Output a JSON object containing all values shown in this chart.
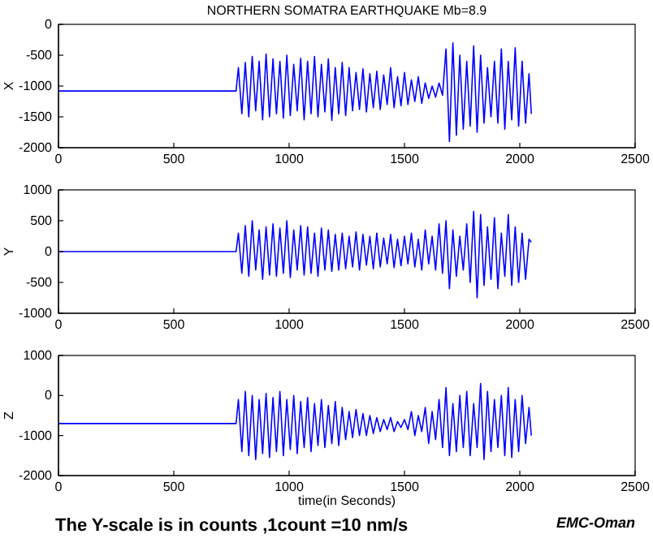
{
  "chart_data": [
    {
      "type": "line",
      "title": "NORTHERN SOMATRA EARTHQUAKE Mb=8.9",
      "ylabel": "X",
      "xlim": [
        0,
        2500
      ],
      "xticks": [
        0,
        500,
        1000,
        1500,
        2000,
        2500
      ],
      "ylim": [
        -2000,
        0
      ],
      "yticks": [
        -2000,
        -1500,
        -1000,
        -500,
        0
      ],
      "x": [
        0,
        770,
        780,
        795,
        810,
        825,
        840,
        855,
        870,
        885,
        900,
        915,
        930,
        945,
        960,
        975,
        990,
        1005,
        1020,
        1035,
        1050,
        1065,
        1080,
        1095,
        1110,
        1125,
        1140,
        1155,
        1170,
        1185,
        1200,
        1215,
        1230,
        1245,
        1260,
        1275,
        1290,
        1305,
        1320,
        1335,
        1350,
        1365,
        1380,
        1395,
        1410,
        1425,
        1440,
        1455,
        1470,
        1485,
        1500,
        1515,
        1530,
        1545,
        1560,
        1575,
        1590,
        1605,
        1620,
        1635,
        1650,
        1665,
        1680,
        1695,
        1710,
        1725,
        1740,
        1755,
        1770,
        1785,
        1800,
        1815,
        1830,
        1845,
        1860,
        1875,
        1890,
        1905,
        1920,
        1935,
        1950,
        1965,
        1980,
        1995,
        2010,
        2025,
        2040,
        2050
      ],
      "series": [
        {
          "color": "#0000ff",
          "values": [
            -1080,
            -1080,
            -700,
            -1450,
            -620,
            -1500,
            -520,
            -1400,
            -600,
            -1550,
            -480,
            -1500,
            -560,
            -1450,
            -600,
            -1520,
            -500,
            -1480,
            -650,
            -1400,
            -550,
            -1550,
            -600,
            -1450,
            -520,
            -1500,
            -650,
            -1420,
            -560,
            -1560,
            -700,
            -1450,
            -620,
            -1480,
            -700,
            -1400,
            -780,
            -1380,
            -720,
            -1420,
            -800,
            -1350,
            -760,
            -1380,
            -820,
            -1300,
            -700,
            -1350,
            -850,
            -1320,
            -780,
            -1300,
            -900,
            -1250,
            -850,
            -1280,
            -950,
            -1200,
            -1000,
            -1180,
            -950,
            -1150,
            -400,
            -1900,
            -300,
            -1800,
            -500,
            -1700,
            -600,
            -1650,
            -350,
            -1750,
            -500,
            -1600,
            -700,
            -1500,
            -600,
            -1600,
            -400,
            -1700,
            -600,
            -1550,
            -380,
            -1650,
            -600,
            -1600,
            -800,
            -1450
          ]
        }
      ]
    },
    {
      "type": "line",
      "ylabel": "Y",
      "xlim": [
        0,
        2500
      ],
      "xticks": [
        0,
        500,
        1000,
        1500,
        2000,
        2500
      ],
      "ylim": [
        -1000,
        1000
      ],
      "yticks": [
        -1000,
        -500,
        0,
        500,
        1000
      ],
      "x": [
        0,
        770,
        780,
        795,
        810,
        825,
        840,
        855,
        870,
        885,
        900,
        915,
        930,
        945,
        960,
        975,
        990,
        1005,
        1020,
        1035,
        1050,
        1065,
        1080,
        1095,
        1110,
        1125,
        1140,
        1155,
        1170,
        1185,
        1200,
        1215,
        1230,
        1245,
        1260,
        1275,
        1290,
        1305,
        1320,
        1335,
        1350,
        1365,
        1380,
        1395,
        1410,
        1425,
        1440,
        1455,
        1470,
        1485,
        1500,
        1515,
        1530,
        1545,
        1560,
        1575,
        1590,
        1605,
        1620,
        1635,
        1650,
        1665,
        1680,
        1695,
        1710,
        1725,
        1740,
        1755,
        1770,
        1785,
        1800,
        1815,
        1830,
        1845,
        1860,
        1875,
        1890,
        1905,
        1920,
        1935,
        1950,
        1965,
        1980,
        1995,
        2010,
        2025,
        2040,
        2050
      ],
      "series": [
        {
          "color": "#0000ff",
          "values": [
            0,
            0,
            300,
            -350,
            420,
            -400,
            500,
            -300,
            350,
            -450,
            400,
            -380,
            450,
            -400,
            380,
            -350,
            500,
            -420,
            350,
            -300,
            420,
            -380,
            400,
            -350,
            300,
            -400,
            380,
            -300,
            350,
            -320,
            280,
            -300,
            300,
            -280,
            250,
            -250,
            320,
            -300,
            280,
            -220,
            250,
            -280,
            300,
            -250,
            220,
            -200,
            280,
            -260,
            200,
            -230,
            250,
            -200,
            300,
            -250,
            200,
            -300,
            350,
            -200,
            250,
            -300,
            450,
            -350,
            500,
            -600,
            350,
            -400,
            250,
            -300,
            450,
            -500,
            650,
            -750,
            600,
            -550,
            400,
            -450,
            550,
            -600,
            300,
            -400,
            600,
            -550,
            400,
            -500,
            300,
            -450,
            200,
            150
          ]
        }
      ]
    },
    {
      "type": "line",
      "ylabel": "Z",
      "xlabel": "time(in Seconds)",
      "xlim": [
        0,
        2500
      ],
      "xticks": [
        0,
        500,
        1000,
        1500,
        2000,
        2500
      ],
      "ylim": [
        -2000,
        1000
      ],
      "yticks": [
        -2000,
        -1000,
        0,
        1000
      ],
      "annotations": [
        "The Y-scale is in counts ,1count =10 nm/s",
        "EMC-Oman"
      ],
      "x": [
        0,
        770,
        780,
        795,
        810,
        825,
        840,
        855,
        870,
        885,
        900,
        915,
        930,
        945,
        960,
        975,
        990,
        1005,
        1020,
        1035,
        1050,
        1065,
        1080,
        1095,
        1110,
        1125,
        1140,
        1155,
        1170,
        1185,
        1200,
        1215,
        1230,
        1245,
        1260,
        1275,
        1290,
        1305,
        1320,
        1335,
        1350,
        1365,
        1380,
        1395,
        1410,
        1425,
        1440,
        1455,
        1470,
        1485,
        1500,
        1515,
        1530,
        1545,
        1560,
        1575,
        1590,
        1605,
        1620,
        1635,
        1650,
        1665,
        1680,
        1695,
        1710,
        1725,
        1740,
        1755,
        1770,
        1785,
        1800,
        1815,
        1830,
        1845,
        1860,
        1875,
        1890,
        1905,
        1920,
        1935,
        1950,
        1965,
        1980,
        1995,
        2010,
        2025,
        2040,
        2050
      ],
      "series": [
        {
          "color": "#0000ff",
          "values": [
            -700,
            -700,
            -100,
            -1400,
            100,
            -1500,
            0,
            -1600,
            -100,
            -1450,
            50,
            -1550,
            -50,
            -1400,
            100,
            -1500,
            -100,
            -1350,
            0,
            -1450,
            -150,
            -1300,
            -50,
            -1400,
            -200,
            -1250,
            -100,
            -1300,
            -250,
            -1200,
            -150,
            -1250,
            -300,
            -1100,
            -400,
            -1050,
            -350,
            -1000,
            -450,
            -1000,
            -500,
            -950,
            -550,
            -900,
            -600,
            -850,
            -550,
            -900,
            -650,
            -800,
            -600,
            -850,
            -400,
            -1000,
            -500,
            -900,
            -300,
            -1200,
            -400,
            -1100,
            -100,
            -1300,
            200,
            -1500,
            -200,
            -1400,
            0,
            -1300,
            100,
            -1500,
            -200,
            -1300,
            300,
            -1600,
            100,
            -1400,
            -100,
            -1300,
            0,
            -1500,
            200,
            -1550,
            -100,
            -1400,
            0,
            -1200,
            -300,
            -1000
          ]
        }
      ]
    }
  ]
}
